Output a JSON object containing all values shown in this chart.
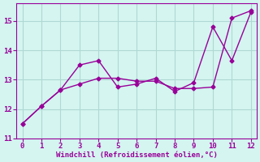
{
  "x": [
    0,
    1,
    2,
    3,
    4,
    5,
    6,
    7,
    8,
    9,
    10,
    11,
    12
  ],
  "line1_y": [
    11.5,
    12.1,
    12.65,
    13.5,
    13.65,
    12.75,
    12.85,
    13.05,
    12.6,
    12.9,
    14.8,
    13.65,
    15.3
  ],
  "line2_y": [
    11.5,
    12.1,
    12.65,
    12.85,
    13.05,
    13.05,
    12.95,
    12.95,
    12.7,
    12.7,
    12.75,
    15.1,
    15.35
  ],
  "color": "#990099",
  "bg_color": "#d4f5f0",
  "grid_color": "#b0d8d4",
  "xlabel": "Windchill (Refroidissement éolien,°C)",
  "xlim": [
    -0.3,
    12.3
  ],
  "ylim": [
    11.0,
    15.6
  ],
  "yticks": [
    11,
    12,
    13,
    14,
    15
  ],
  "xticks": [
    0,
    1,
    2,
    3,
    4,
    5,
    6,
    7,
    8,
    9,
    10,
    11,
    12
  ],
  "marker": "D",
  "markersize": 2.5,
  "linewidth": 1.0
}
